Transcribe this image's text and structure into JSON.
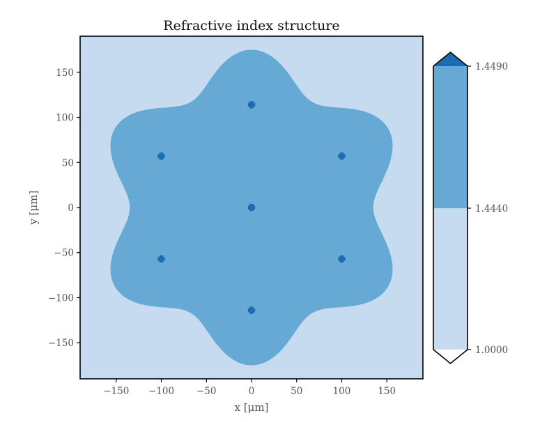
{
  "chart_data": {
    "type": "heatmap",
    "title": "Refractive index structure",
    "xlabel": "x [μm]",
    "ylabel": "y [μm]",
    "xlim": [
      -190,
      190
    ],
    "ylim": [
      -190,
      190
    ],
    "xticks": [
      -150,
      -100,
      -50,
      0,
      50,
      100,
      150
    ],
    "xtick_labels": [
      "−150",
      "−100",
      "−50",
      "0",
      "50",
      "100",
      "150"
    ],
    "yticks": [
      -150,
      -100,
      -50,
      0,
      50,
      100,
      150
    ],
    "ytick_labels": [
      "−150",
      "−100",
      "−50",
      "0",
      "50",
      "100",
      "150"
    ],
    "grid": false,
    "colorbar": {
      "ticks": [
        "1.4490",
        "1.4440",
        "1.0000"
      ],
      "levels": [
        {
          "label": "1.0000",
          "color": "#c6dbef"
        },
        {
          "label": "1.4440",
          "color": "#65a9d4"
        },
        {
          "label": "1.4490",
          "color": "#1c6cb1"
        }
      ],
      "extend": "both",
      "under_color": "#ffffff",
      "over_color": "#1c6cb1"
    },
    "regions": {
      "background": {
        "value": 1.0,
        "color": "#c6dbef"
      },
      "cladding": {
        "value": 1.444,
        "color": "#65a9d4",
        "shape": "six-lobed flower",
        "base_radius": 155,
        "lobe_amplitude": 20,
        "lobe_count": 6
      },
      "cores": {
        "value": 1.449,
        "color": "#1c6cb1",
        "size": 4,
        "positions": [
          {
            "x": 0,
            "y": 0
          },
          {
            "x": 0,
            "y": 114
          },
          {
            "x": 0,
            "y": -114
          },
          {
            "x": -100,
            "y": 57
          },
          {
            "x": 100,
            "y": 57
          },
          {
            "x": -100,
            "y": -57
          },
          {
            "x": 100,
            "y": -57
          }
        ]
      }
    }
  }
}
